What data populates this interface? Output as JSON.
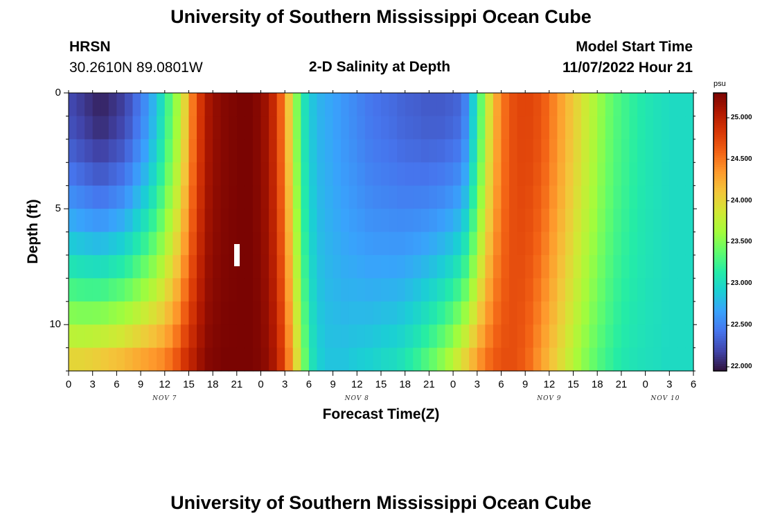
{
  "header": {
    "title": "University of Southern Mississippi Ocean Cube",
    "station": "HRSN",
    "coords": "30.2610N  89.0801W",
    "subtitle": "2-D Salinity at Depth",
    "start_label": "Model Start Time",
    "start_value": "11/07/2022 Hour 21",
    "footer_title": "University of Southern Mississippi Ocean Cube"
  },
  "chart_data": {
    "type": "heatmap",
    "title": "2-D Salinity at Depth",
    "xlabel": "Forecast Time(Z)",
    "ylabel": "Depth (ft)",
    "x_tick_labels": [
      "0",
      "3",
      "6",
      "9",
      "12",
      "15",
      "18",
      "21",
      "0",
      "3",
      "6",
      "9",
      "12",
      "15",
      "18",
      "21",
      "0",
      "3",
      "6",
      "9",
      "12",
      "15",
      "18",
      "21",
      "0",
      "3",
      "6"
    ],
    "x_hours_range": [
      0,
      78
    ],
    "date_labels": [
      "NOV 7",
      "NOV 8",
      "NOV 9",
      "NOV 10"
    ],
    "y_ticks": [
      0,
      5,
      10
    ],
    "y_range": [
      0,
      12
    ],
    "colorbar": {
      "unit": "psu",
      "range": [
        21.95,
        25.3
      ],
      "ticks": [
        "25.000",
        "24.500",
        "24.000",
        "23.500",
        "23.000",
        "22.500",
        "22.000"
      ],
      "colors": [
        "#30123b",
        "#4145ab",
        "#4675ed",
        "#39a2fc",
        "#1bcfd4",
        "#24eca6",
        "#61fc6c",
        "#a4fc3b",
        "#d1e834",
        "#f3c63a",
        "#fe9b2d",
        "#f36315",
        "#d93806",
        "#b11901",
        "#7a0402"
      ]
    },
    "n_depth_levels": 12,
    "column_hours": [
      0,
      1,
      2,
      3,
      4,
      5,
      6,
      7,
      8,
      9,
      10,
      11,
      12,
      13,
      14,
      15,
      16,
      17,
      18,
      19,
      20,
      21,
      22,
      23,
      24,
      25,
      26,
      27,
      28,
      29,
      30,
      31,
      32,
      33,
      34,
      35,
      36,
      37,
      38,
      39,
      40,
      41,
      42,
      43,
      44,
      45,
      46,
      47,
      48,
      49,
      50,
      51,
      52,
      53,
      54,
      55,
      56,
      57,
      58,
      59,
      60,
      61,
      62,
      63,
      64,
      65,
      66,
      67,
      68,
      69,
      70,
      71,
      72,
      73,
      74,
      75,
      76,
      77
    ],
    "surface_salinity": [
      22.2,
      22.15,
      22.1,
      22.05,
      22.05,
      22.1,
      22.15,
      22.25,
      22.4,
      22.55,
      22.75,
      23.0,
      23.3,
      23.6,
      24.0,
      24.5,
      24.85,
      25.1,
      25.2,
      25.25,
      25.28,
      25.3,
      25.3,
      25.25,
      25.15,
      24.95,
      24.6,
      24.1,
      23.5,
      23.05,
      22.85,
      22.75,
      22.7,
      22.65,
      22.6,
      22.55,
      22.5,
      22.45,
      22.42,
      22.4,
      22.38,
      22.35,
      22.33,
      22.32,
      22.3,
      22.3,
      22.3,
      22.32,
      22.35,
      22.5,
      22.9,
      23.4,
      23.9,
      24.3,
      24.55,
      24.7,
      24.75,
      24.75,
      24.7,
      24.6,
      24.45,
      24.3,
      24.15,
      24.0,
      23.85,
      23.7,
      23.55,
      23.42,
      23.32,
      23.25,
      23.18,
      23.12,
      23.08,
      23.05,
      23.02,
      23.0,
      23.0,
      23.0
    ],
    "bottom_salinity": [
      24.0,
      24.0,
      24.02,
      24.05,
      24.08,
      24.12,
      24.15,
      24.2,
      24.25,
      24.3,
      24.35,
      24.4,
      24.5,
      24.65,
      24.85,
      25.0,
      25.15,
      25.25,
      25.28,
      25.3,
      25.3,
      25.3,
      25.3,
      25.28,
      25.22,
      25.1,
      24.85,
      24.45,
      23.95,
      23.4,
      23.05,
      22.9,
      22.85,
      22.85,
      22.85,
      22.88,
      22.9,
      22.92,
      22.95,
      22.98,
      23.0,
      23.05,
      23.12,
      23.2,
      23.3,
      23.4,
      23.52,
      23.65,
      23.82,
      24.0,
      24.2,
      24.4,
      24.55,
      24.65,
      24.7,
      24.7,
      24.65,
      24.55,
      24.4,
      24.25,
      24.1,
      23.95,
      23.8,
      23.65,
      23.52,
      23.4,
      23.3,
      23.22,
      23.15,
      23.1,
      23.07,
      23.05,
      23.03,
      23.02,
      23.0,
      23.0,
      23.0,
      23.0
    ],
    "depth_mix_exponent": 1.6
  }
}
